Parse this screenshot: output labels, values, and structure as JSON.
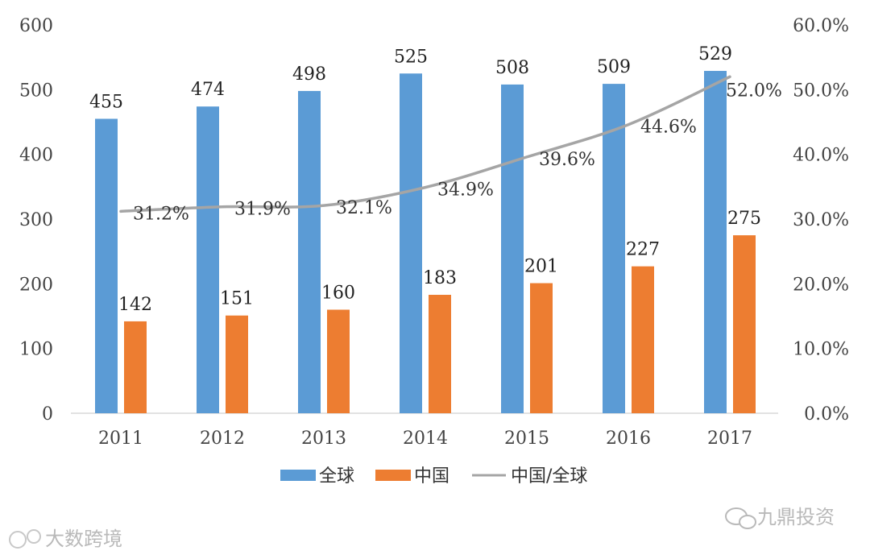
{
  "chart_data": {
    "type": "bar",
    "categories": [
      "2011",
      "2012",
      "2013",
      "2014",
      "2015",
      "2016",
      "2017"
    ],
    "series": [
      {
        "name": "全球",
        "kind": "bar",
        "axis": "left",
        "color": "#5b9bd5",
        "values": [
          455,
          474,
          498,
          525,
          508,
          509,
          529
        ]
      },
      {
        "name": "中国",
        "kind": "bar",
        "axis": "left",
        "color": "#ed7d31",
        "values": [
          142,
          151,
          160,
          183,
          201,
          227,
          275
        ]
      },
      {
        "name": "中国/全球",
        "kind": "line",
        "axis": "right",
        "color": "#a5a5a5",
        "values": [
          31.2,
          31.9,
          32.1,
          34.9,
          39.6,
          44.6,
          52.0
        ]
      }
    ],
    "ratio_labels": [
      "31.2%",
      "31.9%",
      "32.1%",
      "34.9%",
      "39.6%",
      "44.6%",
      "52.0%"
    ],
    "left_axis": {
      "ylim": [
        0,
        600
      ],
      "ticks": [
        "0",
        "100",
        "200",
        "300",
        "400",
        "500",
        "600"
      ]
    },
    "right_axis": {
      "ylim": [
        0,
        60
      ],
      "ticks": [
        "0.0%",
        "10.0%",
        "20.0%",
        "30.0%",
        "40.0%",
        "50.0%",
        "60.0%"
      ]
    },
    "title": "",
    "xlabel": "",
    "ylabel": "",
    "grid": false,
    "legend_position": "bottom-center"
  },
  "watermarks": {
    "left": "大数跨境",
    "right": "九鼎投资"
  }
}
